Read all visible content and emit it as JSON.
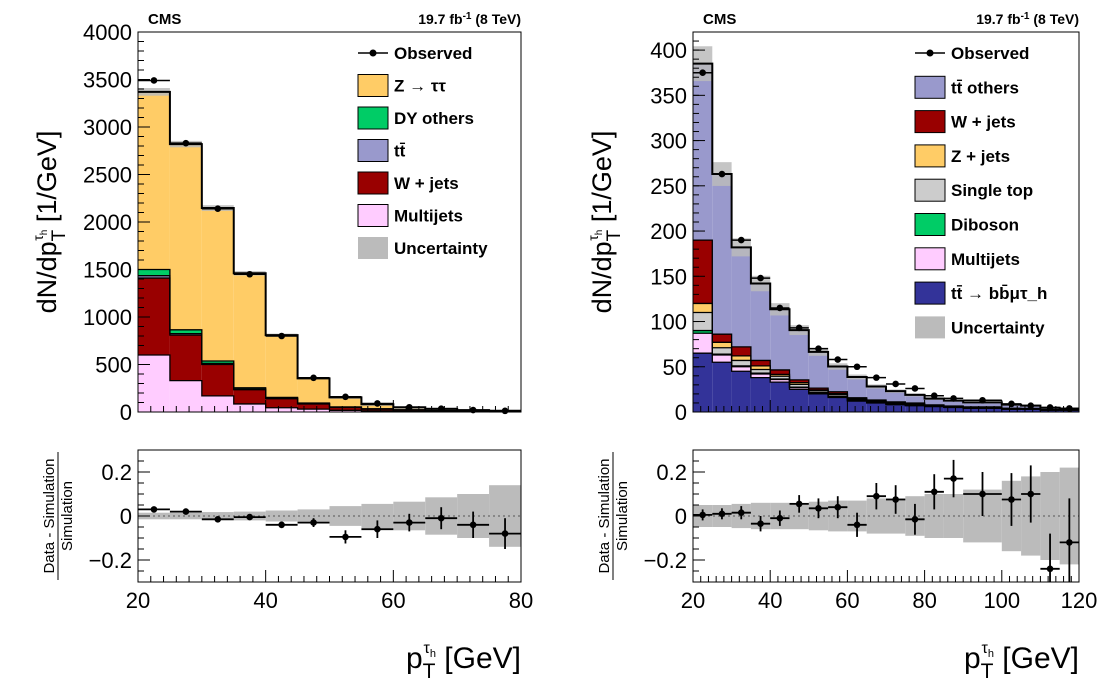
{
  "panels": [
    {
      "experiment": "CMS",
      "lumi": "19.7 fb",
      "lumi_sup": "-1",
      "energy": " (8 TeV)"
    },
    {
      "experiment": "CMS",
      "lumi": "19.7 fb",
      "lumi_sup": "-1",
      "energy": " (8 TeV)"
    }
  ],
  "chart_data": [
    {
      "type": "bar",
      "subtype": "stacked-histogram",
      "ylabel": "dN/dp_T^{τ_h} [1/GeV]",
      "xlabel": "p_T^{τ_h} [GeV]",
      "xlim": [
        20,
        80
      ],
      "ylim": [
        0,
        4000
      ],
      "yticks": [
        0,
        500,
        1000,
        1500,
        2000,
        2500,
        3000,
        3500,
        4000
      ],
      "xticks": [
        20,
        40,
        60,
        80
      ],
      "bin_edges": [
        20,
        25,
        30,
        35,
        40,
        45,
        50,
        55,
        60,
        65,
        70,
        75,
        80
      ],
      "legend_position": "top-right",
      "series": [
        {
          "name": "Multijets",
          "color": "#ffccff",
          "values": [
            600,
            330,
            170,
            85,
            45,
            30,
            18,
            12,
            8,
            5,
            3,
            2
          ]
        },
        {
          "name": "W + jets",
          "color": "#990000",
          "values": [
            810,
            480,
            330,
            150,
            95,
            55,
            30,
            18,
            12,
            8,
            5,
            3
          ]
        },
        {
          "name": "tt̄",
          "color": "#9999cc",
          "values": [
            25,
            15,
            12,
            8,
            6,
            4,
            3,
            2,
            2,
            1,
            1,
            1
          ]
        },
        {
          "name": "DY others",
          "color": "#00cc66",
          "values": [
            65,
            40,
            25,
            12,
            8,
            5,
            3,
            2,
            1,
            1,
            1,
            1
          ]
        },
        {
          "name": "Z → ττ",
          "color": "#ffcc66",
          "values": [
            1870,
            1955,
            1610,
            1205,
            655,
            260,
            100,
            48,
            27,
            18,
            10,
            6
          ]
        }
      ],
      "uncertainty": {
        "name": "Uncertainty",
        "color": "#bbbbbb",
        "frac": [
          0.012,
          0.012,
          0.014,
          0.016,
          0.02,
          0.03,
          0.04,
          0.05,
          0.06,
          0.08,
          0.1,
          0.14
        ]
      },
      "observed": {
        "name": "Observed",
        "values": [
          3490,
          2830,
          2140,
          1450,
          800,
          360,
          160,
          90,
          50,
          35,
          20,
          12
        ]
      },
      "ratio": {
        "ylabel_top": "Data - Simulation",
        "ylabel_bottom": "Simulation",
        "ylim": [
          -0.3,
          0.3
        ],
        "yticks": [
          -0.2,
          0,
          0.2
        ],
        "ytick_labels": [
          "−0.2",
          "0",
          "0.2"
        ],
        "values": [
          0.03,
          0.02,
          -0.015,
          -0.005,
          -0.04,
          -0.03,
          -0.095,
          -0.06,
          -0.03,
          -0.01,
          -0.04,
          -0.08
        ],
        "errors": [
          0.01,
          0.01,
          0.01,
          0.012,
          0.015,
          0.02,
          0.03,
          0.04,
          0.04,
          0.05,
          0.06,
          0.07
        ],
        "band": [
          0.015,
          0.015,
          0.018,
          0.02,
          0.025,
          0.03,
          0.045,
          0.055,
          0.065,
          0.085,
          0.1,
          0.14
        ]
      }
    },
    {
      "type": "bar",
      "subtype": "stacked-histogram",
      "ylabel": "dN/dp_T^{τ_h} [1/GeV]",
      "xlabel": "p_T^{τ_h} [GeV]",
      "xlim": [
        20,
        120
      ],
      "ylim": [
        0,
        420
      ],
      "yticks": [
        0,
        50,
        100,
        150,
        200,
        250,
        300,
        350,
        400
      ],
      "xticks": [
        20,
        40,
        60,
        80,
        100,
        120
      ],
      "bin_edges": [
        20,
        25,
        30,
        35,
        40,
        45,
        50,
        55,
        60,
        65,
        70,
        75,
        80,
        85,
        90,
        100,
        105,
        110,
        115,
        120
      ],
      "legend_position": "top-right",
      "series": [
        {
          "name": "tt̄ → bb̄μτ_h",
          "color": "#333399",
          "values": [
            65,
            55,
            45,
            38,
            33,
            25,
            20,
            16,
            12,
            10,
            8,
            7,
            6,
            5,
            4,
            3,
            3,
            2,
            2
          ]
        },
        {
          "name": "Multijets",
          "color": "#ffccff",
          "values": [
            22,
            8,
            5,
            4,
            3,
            2,
            1,
            1,
            1,
            0.5,
            0.5,
            0.5,
            0.4,
            0.3,
            0.3,
            0.2,
            0.2,
            0.1,
            0.1
          ]
        },
        {
          "name": "Diboson",
          "color": "#00cc66",
          "values": [
            3,
            1,
            1,
            1,
            0.5,
            0.5,
            0.4,
            0.3,
            0.2,
            0.2,
            0.1,
            0.1,
            0.1,
            0.1,
            0.1,
            0.1,
            0.1,
            0.1,
            0.1
          ]
        },
        {
          "name": "Single top",
          "color": "#cccccc",
          "values": [
            20,
            7,
            6,
            4,
            3,
            3,
            2,
            2,
            1,
            1,
            1,
            1,
            0.5,
            0.5,
            0.5,
            0.3,
            0.3,
            0.2,
            0.2
          ]
        },
        {
          "name": "Z + jets",
          "color": "#ffcc66",
          "values": [
            10,
            6,
            5,
            4,
            2,
            2,
            1,
            1,
            0.5,
            0.5,
            0.5,
            0.3,
            0.3,
            0.2,
            0.2,
            0.2,
            0.1,
            0.1,
            0.1
          ]
        },
        {
          "name": "W + jets",
          "color": "#990000",
          "values": [
            70,
            9,
            10,
            6,
            5,
            3,
            2,
            2,
            1,
            1,
            1,
            1,
            0.5,
            0.5,
            0.5,
            0.3,
            0.3,
            0.2,
            0.2
          ]
        },
        {
          "name": "tt̄ others",
          "color": "#9999cc",
          "values": [
            195,
            177,
            110,
            85,
            67,
            55,
            40,
            28,
            23,
            15,
            12,
            9,
            7,
            6,
            5,
            4,
            3,
            2,
            1
          ]
        }
      ],
      "uncertainty": {
        "name": "Uncertainty",
        "color": "#bbbbbb",
        "frac": [
          0.05,
          0.05,
          0.055,
          0.06,
          0.06,
          0.06,
          0.065,
          0.07,
          0.07,
          0.08,
          0.08,
          0.09,
          0.1,
          0.1,
          0.12,
          0.16,
          0.18,
          0.2,
          0.22
        ]
      },
      "observed": {
        "name": "Observed",
        "values": [
          375,
          263,
          190,
          148,
          115,
          93,
          70,
          58,
          50,
          38,
          31,
          26,
          18,
          15,
          13,
          9,
          7,
          5,
          4
        ]
      },
      "ratio": {
        "ylabel_top": "Data - Simulation",
        "ylabel_bottom": "Simulation",
        "ylim": [
          -0.3,
          0.3
        ],
        "yticks": [
          -0.2,
          0,
          0.2
        ],
        "ytick_labels": [
          "−0.2",
          "0",
          "0.2"
        ],
        "values": [
          0.005,
          0.01,
          0.015,
          -0.035,
          -0.01,
          0.055,
          0.035,
          0.04,
          -0.04,
          0.09,
          0.075,
          -0.015,
          0.11,
          0.17,
          0.1,
          0.075,
          0.1,
          -0.24,
          -0.12
        ],
        "errors": [
          0.025,
          0.025,
          0.03,
          0.035,
          0.035,
          0.04,
          0.045,
          0.05,
          0.055,
          0.06,
          0.065,
          0.07,
          0.08,
          0.085,
          0.1,
          0.12,
          0.13,
          0.16,
          0.2
        ],
        "band": [
          0.05,
          0.05,
          0.055,
          0.06,
          0.06,
          0.06,
          0.065,
          0.07,
          0.07,
          0.08,
          0.08,
          0.09,
          0.1,
          0.1,
          0.12,
          0.16,
          0.18,
          0.2,
          0.22
        ]
      }
    }
  ]
}
